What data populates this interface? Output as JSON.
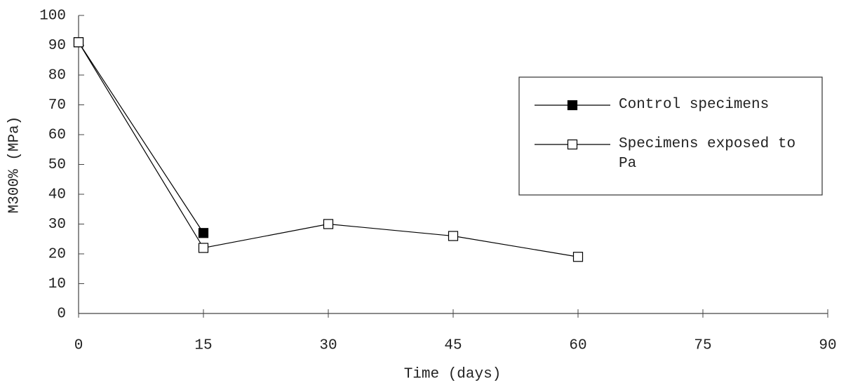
{
  "chart_data": {
    "type": "line",
    "x_label": "Time (days)",
    "y_label": "M300% (MPa)",
    "x": [
      0,
      15,
      30,
      45,
      60
    ],
    "series": [
      {
        "name": "Control specimens",
        "color": "#000000",
        "marker": "filled",
        "values": [
          91,
          27,
          null,
          null,
          null
        ]
      },
      {
        "name": "Specimens exposed to Pa",
        "color": "#000000",
        "marker": "open",
        "values": [
          91,
          22,
          30,
          26,
          19
        ]
      }
    ],
    "xlim": [
      0,
      90
    ],
    "xticks": [
      0,
      15,
      30,
      45,
      60,
      75,
      90
    ],
    "ylim": [
      0,
      100
    ],
    "yticks": [
      0,
      10,
      20,
      30,
      40,
      50,
      60,
      70,
      80,
      90,
      100
    ],
    "grid": false,
    "legend": "upper right"
  }
}
